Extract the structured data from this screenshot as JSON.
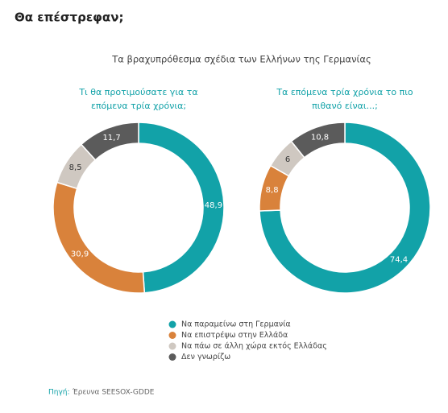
{
  "heading": "Θα επέστρεφαν;",
  "figure_title": "Τα βραχυπρόθεσμα σχέδια των Ελλήνων της Γερμανίας",
  "chart_data": [
    {
      "type": "donut",
      "subtitle": [
        "Τι θα προτιμούσατε για τα",
        "επόμενα τρία χρόνια;"
      ],
      "categories": [
        "Να παραμείνω στη Γερμανία",
        "Να επιστρέψω στην Ελλάδα",
        "Να πάω σε άλλη χώρα εκτός Ελλάδας",
        "Δεν γνωρίζω"
      ],
      "colors": [
        "#12a2a8",
        "#d9823b",
        "#cfc8c1",
        "#5b5b5b"
      ],
      "values": [
        48.9,
        30.9,
        8.5,
        11.7
      ],
      "value_labels": [
        "48,9",
        "30,9",
        "8,5",
        "11,7"
      ]
    },
    {
      "type": "donut",
      "subtitle": [
        "Τα επόμενα τρία χρόνια το πιο",
        "πιθανό είναι...;"
      ],
      "categories": [
        "Να παραμείνω στη Γερμανία",
        "Να επιστρέψω στην Ελλάδα",
        "Να πάω σε άλλη χώρα εκτός Ελλάδας",
        "Δεν γνωρίζω"
      ],
      "colors": [
        "#12a2a8",
        "#d9823b",
        "#cfc8c1",
        "#5b5b5b"
      ],
      "values": [
        74.4,
        8.8,
        6,
        10.8
      ],
      "value_labels": [
        "74,4",
        "8,8",
        "6",
        "10,8"
      ]
    }
  ],
  "source": {
    "label": "Πηγή:",
    "text": "Έρευνα SEESOX-GDDE"
  }
}
